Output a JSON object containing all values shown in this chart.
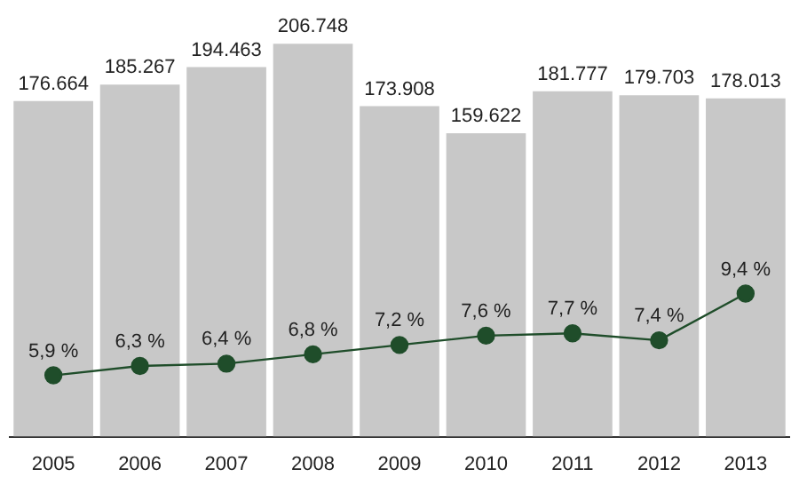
{
  "chart_data": {
    "type": "bar",
    "categories": [
      "2005",
      "2006",
      "2007",
      "2008",
      "2009",
      "2010",
      "2011",
      "2012",
      "2013"
    ],
    "series": [
      {
        "color": "#c8c8c8",
        "values": [
          176.664,
          185.267,
          194.463,
          206.748,
          173.908,
          159.622,
          181.777,
          179.703,
          178.013
        ]
      },
      {
        "type": "line",
        "axis": "y2",
        "color": "#1f4d2a",
        "values": [
          5.9,
          6.3,
          6.4,
          6.8,
          7.2,
          7.6,
          7.7,
          7.4,
          9.4
        ],
        "value_labels": [
          "5,9 %",
          "6,3 %",
          "6,4 %",
          "6,8 %",
          "7,2 %",
          "7,6 %",
          "7,7 %",
          "7,4 %",
          "9,4 %"
        ]
      }
    ],
    "tick_labels": "x",
    "data_labels": true,
    "grid": false,
    "legend": false,
    "marker": "circle",
    "line_style": "solid"
  }
}
